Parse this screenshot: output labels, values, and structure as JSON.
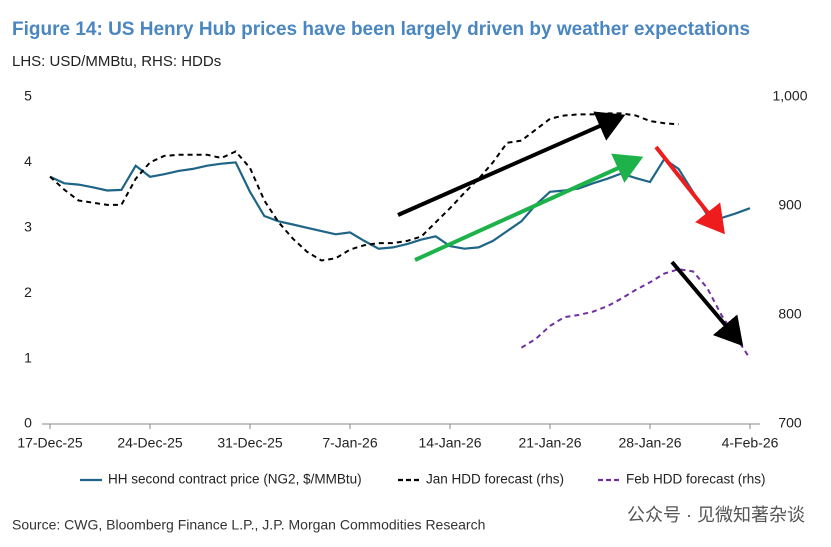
{
  "chart_data": {
    "type": "line",
    "title": "Figure 14: US Henry Hub prices have been largely driven by weather expectations",
    "subtitle": "LHS: USD/MMBtu, RHS: HDDs",
    "source": "Source: CWG, Bloomberg Finance L.P., J.P. Morgan Commodities Research",
    "watermark": "公众号 · 见微知著杂谈",
    "x": [
      "17-Dec-25",
      "18-Dec-25",
      "19-Dec-25",
      "20-Dec-25",
      "21-Dec-25",
      "22-Dec-25",
      "23-Dec-25",
      "24-Dec-25",
      "25-Dec-25",
      "26-Dec-25",
      "27-Dec-25",
      "28-Dec-25",
      "29-Dec-25",
      "30-Dec-25",
      "31-Dec-25",
      "1-Jan-26",
      "2-Jan-26",
      "3-Jan-26",
      "4-Jan-26",
      "5-Jan-26",
      "6-Jan-26",
      "7-Jan-26",
      "8-Jan-26",
      "9-Jan-26",
      "10-Jan-26",
      "11-Jan-26",
      "12-Jan-26",
      "13-Jan-26",
      "14-Jan-26",
      "15-Jan-26",
      "16-Jan-26",
      "17-Jan-26",
      "18-Jan-26",
      "19-Jan-26",
      "20-Jan-26",
      "21-Jan-26",
      "22-Jan-26",
      "23-Jan-26",
      "24-Jan-26",
      "25-Jan-26",
      "26-Jan-26",
      "27-Jan-26",
      "28-Jan-26",
      "29-Jan-26",
      "30-Jan-26",
      "31-Jan-26",
      "1-Feb-26",
      "2-Feb-26",
      "3-Feb-26",
      "4-Feb-26"
    ],
    "xlim": [
      "17-Dec-25",
      "4-Feb-26"
    ],
    "xticks": [
      "17-Dec-25",
      "24-Dec-25",
      "31-Dec-25",
      "7-Jan-26",
      "14-Jan-26",
      "21-Jan-26",
      "28-Jan-26",
      "4-Feb-26"
    ],
    "ylim": [
      0,
      5
    ],
    "yticks": [
      0,
      1,
      2,
      3,
      4,
      5
    ],
    "y2lim": [
      700,
      1000
    ],
    "y2ticks": [
      700,
      800,
      900,
      {
        "value": 1000,
        "label": "1,000"
      }
    ],
    "legend": "bottom",
    "series": [
      {
        "name": "HH second contract price (NG2, $/MMBtu)",
        "color": "#1f6587",
        "dash": "solid",
        "values": [
          3.78,
          3.68,
          3.66,
          3.62,
          3.57,
          3.58,
          3.95,
          3.78,
          3.82,
          3.87,
          3.9,
          3.95,
          3.98,
          4.0,
          3.55,
          3.18,
          3.1,
          3.05,
          3.0,
          2.95,
          2.9,
          2.93,
          2.8,
          2.68,
          2.7,
          2.75,
          2.82,
          2.87,
          2.72,
          2.68,
          2.7,
          2.8,
          2.95,
          3.1,
          3.35,
          3.55,
          3.57,
          3.6,
          3.68,
          3.75,
          3.83,
          3.76,
          3.7,
          4.05,
          3.9,
          3.55,
          3.2,
          3.15,
          3.22,
          3.3
        ]
      },
      {
        "name": "Jan HDD forecast (rhs)",
        "color": "#000000",
        "dash": "dashed",
        "axis": "y2",
        "values": [
          927,
          915,
          905,
          903,
          901,
          901,
          925,
          940,
          946,
          947,
          947,
          947,
          944,
          950,
          935,
          905,
          885,
          870,
          858,
          850,
          852,
          860,
          864,
          866,
          866,
          868,
          872,
          885,
          898,
          912,
          925,
          940,
          958,
          960,
          970,
          980,
          983,
          984,
          984,
          985,
          985,
          983,
          978,
          976,
          975,
          null,
          null,
          null,
          null,
          null
        ]
      },
      {
        "name": "Feb HDD forecast (rhs)",
        "color": "#7030a0",
        "dash": "dashed",
        "axis": "y2",
        "values": [
          null,
          null,
          null,
          null,
          null,
          null,
          null,
          null,
          null,
          null,
          null,
          null,
          null,
          null,
          null,
          null,
          null,
          null,
          null,
          null,
          null,
          null,
          null,
          null,
          null,
          null,
          null,
          null,
          null,
          null,
          null,
          null,
          null,
          770,
          778,
          790,
          798,
          800,
          803,
          808,
          815,
          823,
          830,
          838,
          842,
          840,
          825,
          800,
          780,
          760
        ]
      }
    ]
  }
}
